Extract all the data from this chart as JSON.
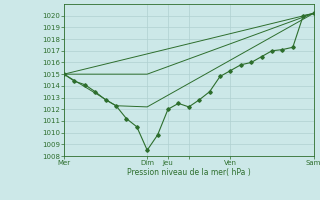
{
  "background_color": "#cce8e8",
  "grid_color": "#aacccc",
  "grid_color_major": "#99bbbb",
  "line_color": "#2d6e2d",
  "xlim": [
    0,
    144
  ],
  "ylim": [
    1008,
    1021
  ],
  "yticks": [
    1008,
    1009,
    1010,
    1011,
    1012,
    1013,
    1014,
    1015,
    1016,
    1017,
    1018,
    1019,
    1020
  ],
  "xtick_positions": [
    0,
    48,
    60,
    72,
    96,
    144
  ],
  "xtick_labels": [
    "Mer",
    "Dim",
    "Jeu",
    "",
    "Ven",
    "Sam"
  ],
  "xlabel": "Pression niveau de la mer( hPa )",
  "series1_x": [
    0,
    6,
    12,
    18,
    24,
    30,
    36,
    42,
    48,
    54,
    60,
    66,
    72,
    78,
    84,
    90,
    96,
    102,
    108,
    114,
    120,
    126,
    132,
    138,
    144
  ],
  "series1_y": [
    1015.0,
    1014.4,
    1014.1,
    1013.5,
    1012.8,
    1012.3,
    1011.2,
    1010.5,
    1008.5,
    1009.8,
    1012.0,
    1012.5,
    1012.2,
    1012.8,
    1013.5,
    1014.8,
    1015.3,
    1015.8,
    1016.0,
    1016.5,
    1017.0,
    1017.1,
    1017.3,
    1020.0,
    1020.2
  ],
  "series2_x": [
    0,
    144
  ],
  "series2_y": [
    1015.0,
    1020.2
  ],
  "series3_x": [
    0,
    30,
    48,
    144
  ],
  "series3_y": [
    1015.0,
    1012.3,
    1012.2,
    1020.2
  ],
  "series4_x": [
    0,
    48,
    144
  ],
  "series4_y": [
    1015.0,
    1015.0,
    1020.2
  ]
}
